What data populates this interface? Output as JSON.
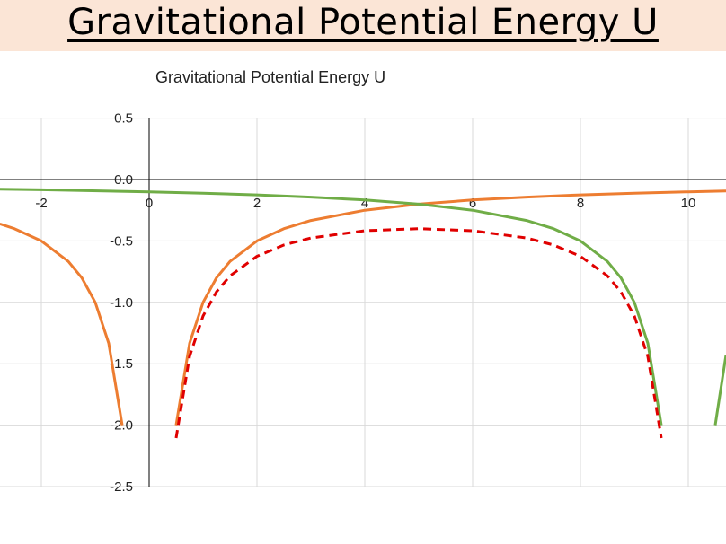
{
  "banner": {
    "title": "Gravitational Potential Energy U",
    "background": "#fbe5d6"
  },
  "chart_data": {
    "type": "line",
    "title": "Gravitational Potential Energy U",
    "xlabel": "",
    "ylabel": "",
    "xlim": [
      -2.77,
      10.7
    ],
    "ylim": [
      -2.5,
      0.5
    ],
    "x_ticks": [
      -2,
      0,
      2,
      4,
      6,
      8,
      10
    ],
    "y_ticks": [
      0.5,
      0.0,
      -0.5,
      -1.0,
      -1.5,
      -2.0,
      -2.5
    ],
    "y_tick_labels": [
      "0.5",
      "0.0",
      "-0.5",
      "-1.0",
      "-1.5",
      "-2.0",
      "-2.5"
    ],
    "grid": true,
    "legend": "none",
    "series": [
      {
        "color": "#ed7d31",
        "style": "solid",
        "segments": [
          {
            "x": [
              -2.77,
              -2.5,
              -2,
              -1.5,
              -1.25,
              -1,
              -0.75,
              -0.5
            ],
            "y": [
              -0.361,
              -0.4,
              -0.5,
              -0.667,
              -0.8,
              -1,
              -1.333,
              -2
            ]
          },
          {
            "x": [
              0.5,
              0.75,
              1,
              1.25,
              1.5,
              2,
              2.5,
              3,
              4,
              5,
              6,
              7,
              8,
              9,
              10,
              10.7
            ],
            "y": [
              -2,
              -1.333,
              -1,
              -0.8,
              -0.667,
              -0.5,
              -0.4,
              -0.333,
              -0.25,
              -0.2,
              -0.167,
              -0.143,
              -0.125,
              -0.111,
              -0.1,
              -0.093
            ]
          }
        ]
      },
      {
        "color": "#70ad47",
        "style": "solid",
        "segments": [
          {
            "x": [
              -2.77,
              -2,
              0,
              1,
              2,
              3,
              4,
              5,
              6,
              7,
              7.5,
              8,
              8.5,
              8.75,
              9,
              9.25,
              9.5
            ],
            "y": [
              -0.078,
              -0.083,
              -0.1,
              -0.111,
              -0.125,
              -0.143,
              -0.167,
              -0.2,
              -0.25,
              -0.333,
              -0.4,
              -0.5,
              -0.667,
              -0.8,
              -1,
              -1.333,
              -2
            ]
          },
          {
            "x": [
              10.5,
              10.7
            ],
            "y": [
              -2,
              -1.429
            ]
          }
        ]
      },
      {
        "color": "#e00000",
        "style": "dashed",
        "segments": [
          {
            "x": [
              0.5,
              0.75,
              1,
              1.25,
              1.5,
              2,
              2.5,
              3,
              4,
              5,
              6,
              7,
              7.5,
              8,
              8.5,
              8.75,
              9,
              9.25,
              9.5
            ],
            "y": [
              -2.105,
              -1.441,
              -1.111,
              -0.914,
              -0.784,
              -0.625,
              -0.533,
              -0.476,
              -0.417,
              -0.4,
              -0.417,
              -0.476,
              -0.533,
              -0.625,
              -0.784,
              -0.914,
              -1.111,
              -1.441,
              -2.105
            ]
          }
        ]
      }
    ]
  }
}
